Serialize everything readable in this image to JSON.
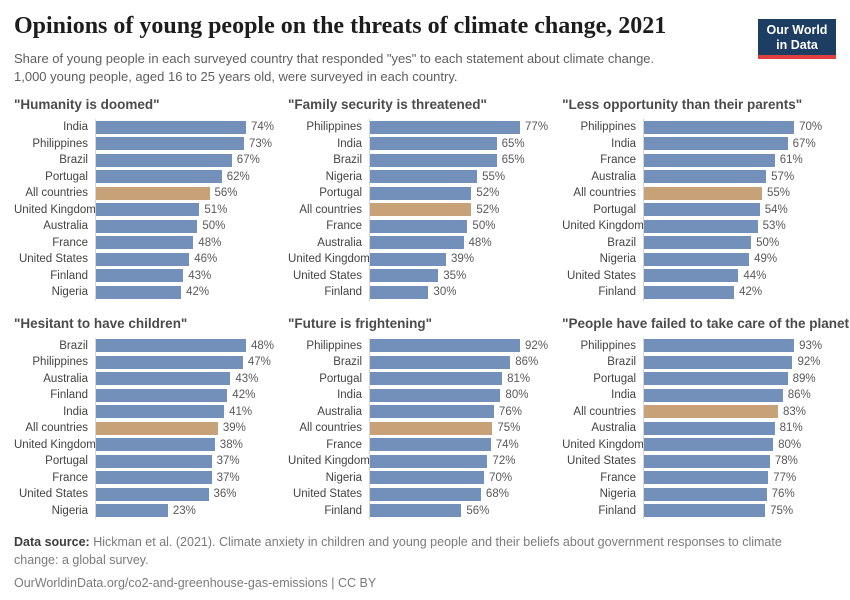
{
  "header": {
    "title": "Opinions of young people on the threats of climate change, 2021",
    "subtitle_line1": "Share of young people in each surveyed country that responded \"yes\" to each statement about climate change.",
    "subtitle_line2": "1,000 young people, aged 16 to 25 years old, were surveyed in each country.",
    "logo": {
      "line1": "Our World",
      "line2": "in Data"
    }
  },
  "colors": {
    "bar_blue": "#7290b9",
    "bar_highlight": "#c7a177",
    "logo_bg": "#1d3d63",
    "logo_stripe": "#e0403f"
  },
  "chart_data": [
    {
      "type": "bar",
      "orientation": "horizontal",
      "title": "\"Humanity is doomed\"",
      "categories": [
        "India",
        "Philippines",
        "Brazil",
        "Portugal",
        "All countries",
        "United Kingdom",
        "Australia",
        "France",
        "United States",
        "Finland",
        "Nigeria"
      ],
      "values": [
        74,
        73,
        67,
        62,
        56,
        51,
        50,
        48,
        46,
        43,
        42
      ],
      "unit": "%",
      "highlight_category": "All countries",
      "highlight_index": 4
    },
    {
      "type": "bar",
      "orientation": "horizontal",
      "title": "\"Family security is threatened\"",
      "categories": [
        "Philippines",
        "India",
        "Brazil",
        "Nigeria",
        "Portugal",
        "All countries",
        "France",
        "Australia",
        "United Kingdom",
        "United States",
        "Finland"
      ],
      "values": [
        77,
        65,
        65,
        55,
        52,
        52,
        50,
        48,
        39,
        35,
        30
      ],
      "unit": "%",
      "highlight_category": "All countries",
      "highlight_index": 5
    },
    {
      "type": "bar",
      "orientation": "horizontal",
      "title": "\"Less opportunity than their parents\"",
      "categories": [
        "Philippines",
        "India",
        "France",
        "Australia",
        "All countries",
        "Portugal",
        "United Kingdom",
        "Brazil",
        "Nigeria",
        "United States",
        "Finland"
      ],
      "values": [
        70,
        67,
        61,
        57,
        55,
        54,
        53,
        50,
        49,
        44,
        42
      ],
      "unit": "%",
      "highlight_category": "All countries",
      "highlight_index": 4
    },
    {
      "type": "bar",
      "orientation": "horizontal",
      "title": "\"Hesitant to have children\"",
      "categories": [
        "Brazil",
        "Philippines",
        "Australia",
        "Finland",
        "India",
        "All countries",
        "United Kingdom",
        "Portugal",
        "France",
        "United States",
        "Nigeria"
      ],
      "values": [
        48,
        47,
        43,
        42,
        41,
        39,
        38,
        37,
        37,
        36,
        23
      ],
      "unit": "%",
      "highlight_category": "All countries",
      "highlight_index": 5
    },
    {
      "type": "bar",
      "orientation": "horizontal",
      "title": "\"Future is frightening\"",
      "categories": [
        "Philippines",
        "Brazil",
        "Portugal",
        "India",
        "Australia",
        "All countries",
        "France",
        "United Kingdom",
        "Nigeria",
        "United States",
        "Finland"
      ],
      "values": [
        92,
        86,
        81,
        80,
        76,
        75,
        74,
        72,
        70,
        68,
        56
      ],
      "unit": "%",
      "highlight_category": "All countries",
      "highlight_index": 5
    },
    {
      "type": "bar",
      "orientation": "horizontal",
      "title": "\"People have failed to take care of the planet\"",
      "categories": [
        "Philippines",
        "Brazil",
        "Portugal",
        "India",
        "All countries",
        "Australia",
        "United Kingdom",
        "United States",
        "France",
        "Nigeria",
        "Finland"
      ],
      "values": [
        93,
        92,
        89,
        86,
        83,
        81,
        80,
        78,
        77,
        76,
        75
      ],
      "unit": "%",
      "highlight_category": "All countries",
      "highlight_index": 4
    }
  ],
  "footer": {
    "source_label": "Data source:",
    "source_text": " Hickman et al. (2021). Climate anxiety in children and young people and their beliefs about government responses to climate change: a global survey.",
    "link_line": "OurWorldinData.org/co2-and-greenhouse-gas-emissions | CC BY"
  }
}
